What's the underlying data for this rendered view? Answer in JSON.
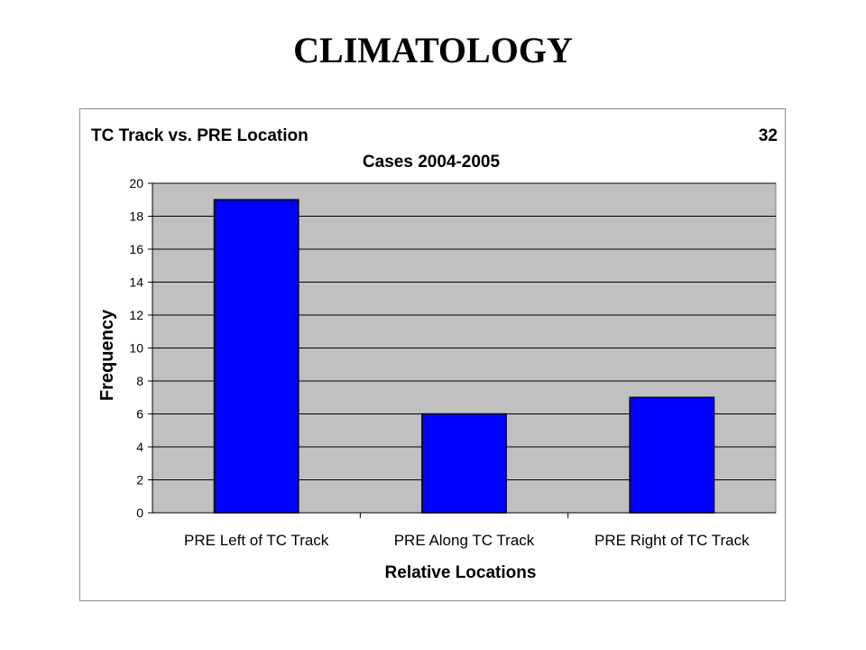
{
  "slide": {
    "title": "CLIMATOLOGY"
  },
  "colors": {
    "bar_fill": "#0000ff",
    "plot_background": "#c0c0c0",
    "gridline": "#000000"
  },
  "chart_data": {
    "type": "bar",
    "title": "TC Track vs. PRE Location",
    "title_right": "32",
    "subtitle": "Cases 2004-2005",
    "xlabel": "Relative Locations",
    "ylabel": "Frequency",
    "categories": [
      "PRE Left of TC Track",
      "PRE Along TC Track",
      "PRE Right of TC Track"
    ],
    "values": [
      19,
      6,
      7
    ],
    "ylim": [
      0,
      20
    ],
    "yticks": [
      0,
      2,
      4,
      6,
      8,
      10,
      12,
      14,
      16,
      18,
      20
    ],
    "grid": true,
    "legend": "none"
  }
}
